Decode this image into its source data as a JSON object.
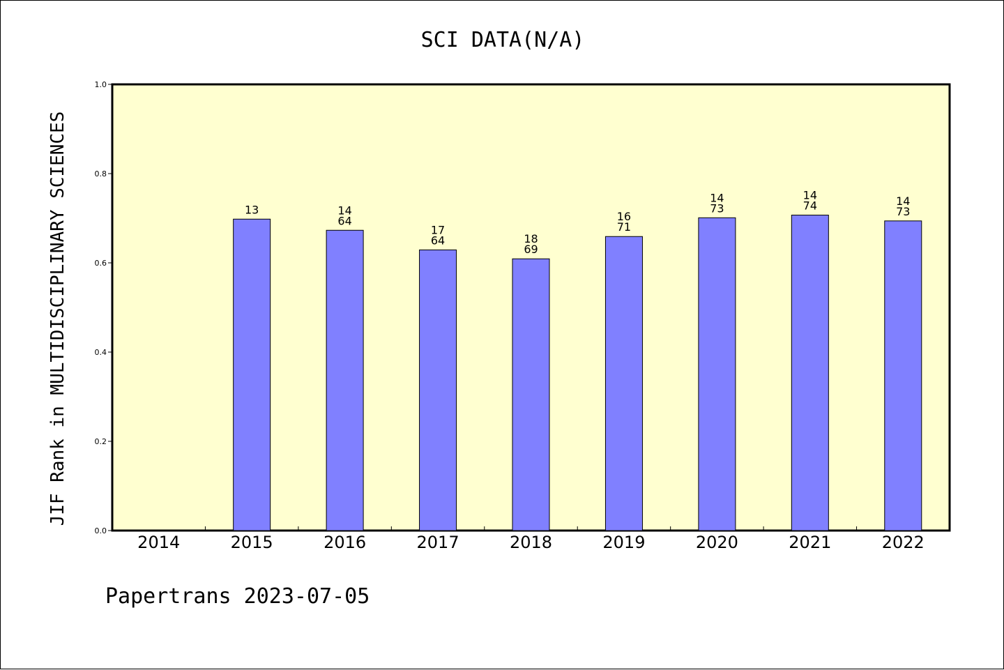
{
  "footer": "Papertrans 2023-07-05",
  "chart_data": {
    "type": "bar",
    "title": "SCI DATA(N/A)",
    "ylabel": "JIF Rank in MULTIDISCIPLINARY SCIENCES",
    "xlabel": "",
    "ylim": [
      0,
      1.0
    ],
    "yticks": [
      "0.0",
      "0.2",
      "0.4",
      "0.6",
      "0.8",
      "1.0"
    ],
    "categories": [
      "2014",
      "2015",
      "2016",
      "2017",
      "2018",
      "2019",
      "2020",
      "2021",
      "2022"
    ],
    "values": [
      null,
      0.698,
      0.673,
      0.629,
      0.609,
      0.659,
      0.701,
      0.707,
      0.694
    ],
    "rank_labels": [
      [],
      [
        "13"
      ],
      [
        "14",
        "64"
      ],
      [
        "17",
        "64"
      ],
      [
        "18",
        "69"
      ],
      [
        "16",
        "71"
      ],
      [
        "14",
        "73"
      ],
      [
        "14",
        "74"
      ],
      [
        "14",
        "73"
      ]
    ],
    "grid": false,
    "colors": {
      "plot_background": "#ffffd0",
      "bar_fill": "#8080ff",
      "bar_stroke": "#000000"
    }
  }
}
